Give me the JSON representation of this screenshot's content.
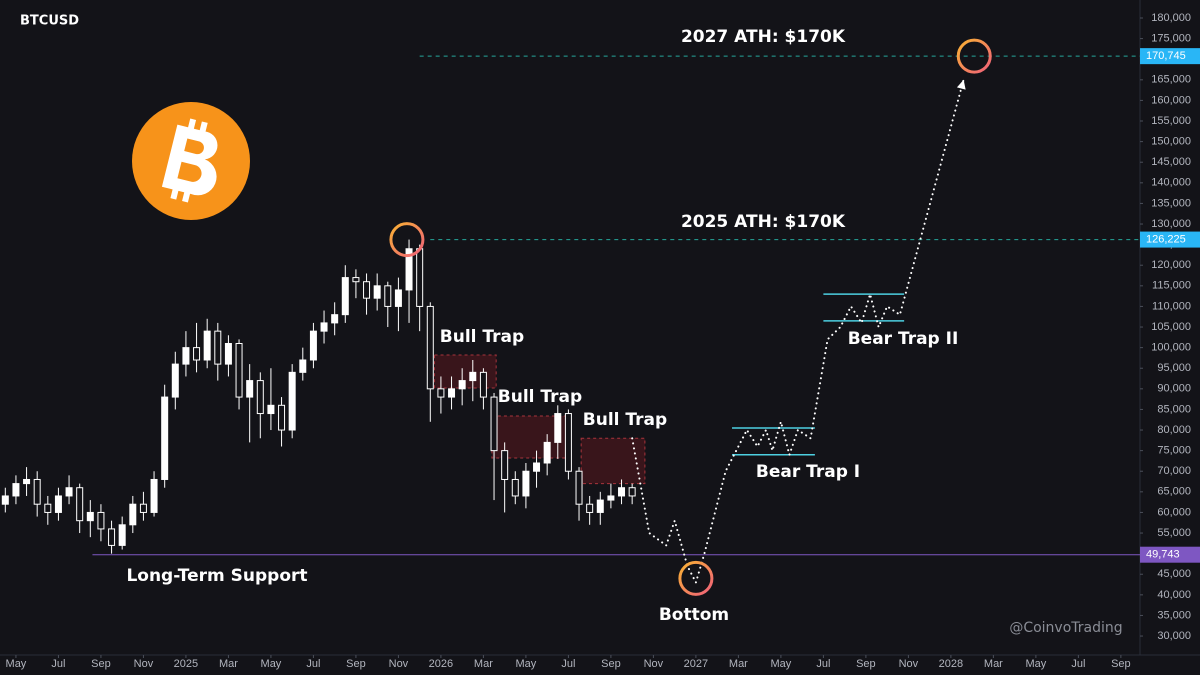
{
  "chart_data": {
    "type": "candlestick",
    "title": "BTCUSD",
    "up_color": "#ffffff",
    "down_color": "#ffffff",
    "x": [
      -0.5,
      0,
      0.5,
      1,
      1.5,
      2,
      2.5,
      3,
      3.5,
      4,
      4.5,
      5,
      5.5,
      6,
      6.5,
      7,
      7.5,
      8,
      8.5,
      9,
      9.5,
      10,
      10.5,
      11,
      11.5,
      12,
      12.5,
      13,
      13.5,
      14,
      14.5,
      15,
      15.5,
      16,
      16.5,
      17,
      17.5,
      18,
      18.5,
      19,
      19.5,
      20,
      20.5,
      21,
      21.5,
      22,
      22.5,
      23,
      23.5,
      24,
      24.5,
      25,
      25.5,
      26,
      26.5,
      27,
      27.5,
      28,
      28.5,
      29
    ],
    "open": [
      62000,
      64000,
      67000,
      68000,
      62000,
      60000,
      64000,
      66000,
      58000,
      60000,
      56000,
      52000,
      57000,
      62000,
      60000,
      68000,
      88000,
      96000,
      100000,
      97000,
      104000,
      96000,
      101000,
      88000,
      92000,
      84000,
      86000,
      80000,
      94000,
      97000,
      104000,
      106000,
      108000,
      117000,
      116000,
      112000,
      115000,
      110000,
      114000,
      124000,
      110000,
      90000,
      88000,
      90000,
      92000,
      94000,
      88000,
      75000,
      68000,
      64000,
      70000,
      72000,
      77000,
      84000,
      70000,
      62000,
      60000,
      63000,
      64000,
      66000
    ],
    "high": [
      66000,
      69000,
      71000,
      70000,
      64000,
      66000,
      69000,
      67000,
      63000,
      62000,
      58000,
      59000,
      64000,
      65000,
      70000,
      91000,
      99000,
      104000,
      106000,
      107000,
      106000,
      103000,
      102000,
      96000,
      94000,
      95000,
      88000,
      96000,
      100000,
      106000,
      109000,
      111000,
      120000,
      119000,
      118000,
      118000,
      116000,
      117000,
      126225,
      125000,
      111000,
      93000,
      93000,
      95000,
      97000,
      95000,
      89000,
      77000,
      70000,
      72000,
      75000,
      79000,
      86000,
      85000,
      71000,
      64000,
      65000,
      67000,
      68000,
      67000
    ],
    "low": [
      60000,
      62000,
      64000,
      59000,
      57000,
      58000,
      62000,
      55000,
      54000,
      53000,
      50000,
      51000,
      55000,
      58000,
      59000,
      66000,
      85000,
      93000,
      94000,
      95000,
      92000,
      93000,
      85000,
      77000,
      78000,
      80000,
      76000,
      78000,
      92000,
      95000,
      101000,
      103000,
      106000,
      112000,
      108000,
      109000,
      105000,
      104000,
      106000,
      104000,
      82000,
      84000,
      85000,
      86000,
      87000,
      85000,
      63000,
      60000,
      62000,
      61000,
      66000,
      69000,
      73000,
      68000,
      58000,
      57000,
      57000,
      61000,
      62000,
      62000
    ],
    "close": [
      64000,
      67000,
      68000,
      62000,
      60000,
      64000,
      66000,
      58000,
      60000,
      56000,
      52000,
      57000,
      62000,
      60000,
      68000,
      88000,
      96000,
      100000,
      97000,
      104000,
      96000,
      101000,
      88000,
      92000,
      84000,
      86000,
      80000,
      94000,
      97000,
      104000,
      106000,
      108000,
      117000,
      116000,
      112000,
      115000,
      110000,
      114000,
      124000,
      110000,
      90000,
      88000,
      90000,
      92000,
      94000,
      88000,
      75000,
      68000,
      64000,
      70000,
      72000,
      77000,
      84000,
      70000,
      62000,
      60000,
      63000,
      64000,
      66000,
      64000
    ],
    "xlim": [
      -0.75,
      52.9
    ],
    "ylim": [
      25400,
      184370
    ],
    "xticks": [
      {
        "value": 0,
        "label": "May"
      },
      {
        "value": 2,
        "label": "Jul"
      },
      {
        "value": 4,
        "label": "Sep"
      },
      {
        "value": 6,
        "label": "Nov"
      },
      {
        "value": 8,
        "label": "2025"
      },
      {
        "value": 10,
        "label": "Mar"
      },
      {
        "value": 12,
        "label": "May"
      },
      {
        "value": 14,
        "label": "Jul"
      },
      {
        "value": 16,
        "label": "Sep"
      },
      {
        "value": 18,
        "label": "Nov"
      },
      {
        "value": 20,
        "label": "2026"
      },
      {
        "value": 22,
        "label": "Mar"
      },
      {
        "value": 24,
        "label": "May"
      },
      {
        "value": 26,
        "label": "Jul"
      },
      {
        "value": 28,
        "label": "Sep"
      },
      {
        "value": 30,
        "label": "Nov"
      },
      {
        "value": 32,
        "label": "2027"
      },
      {
        "value": 34,
        "label": "Mar"
      },
      {
        "value": 36,
        "label": "May"
      },
      {
        "value": 38,
        "label": "Jul"
      },
      {
        "value": 40,
        "label": "Sep"
      },
      {
        "value": 42,
        "label": "Nov"
      },
      {
        "value": 44,
        "label": "2028"
      },
      {
        "value": 46,
        "label": "Mar"
      },
      {
        "value": 48,
        "label": "May"
      },
      {
        "value": 50,
        "label": "Jul"
      },
      {
        "value": 52,
        "label": "Sep"
      }
    ],
    "yticks": [
      {
        "value": 30000,
        "label": "30,000"
      },
      {
        "value": 35000,
        "label": "35,000"
      },
      {
        "value": 40000,
        "label": "40,000"
      },
      {
        "value": 45000,
        "label": "45,000"
      },
      {
        "value": 50000,
        "label": "50,000"
      },
      {
        "value": 55000,
        "label": "55,000"
      },
      {
        "value": 60000,
        "label": "60,000"
      },
      {
        "value": 65000,
        "label": "65,000"
      },
      {
        "value": 70000,
        "label": "70,000"
      },
      {
        "value": 75000,
        "label": "75,000"
      },
      {
        "value": 80000,
        "label": "80,000"
      },
      {
        "value": 85000,
        "label": "85,000"
      },
      {
        "value": 90000,
        "label": "90,000"
      },
      {
        "value": 95000,
        "label": "95,000"
      },
      {
        "value": 100000,
        "label": "100,000"
      },
      {
        "value": 105000,
        "label": "105,000"
      },
      {
        "value": 110000,
        "label": "110,000"
      },
      {
        "value": 115000,
        "label": "115,000"
      },
      {
        "value": 120000,
        "label": "120,000"
      },
      {
        "value": 125000,
        "label": "125,000"
      },
      {
        "value": 130000,
        "label": "130,000"
      },
      {
        "value": 135000,
        "label": "135,000"
      },
      {
        "value": 140000,
        "label": "140,000"
      },
      {
        "value": 145000,
        "label": "145,000"
      },
      {
        "value": 150000,
        "label": "150,000"
      },
      {
        "value": 155000,
        "label": "155,000"
      },
      {
        "value": 160000,
        "label": "160,000"
      },
      {
        "value": 165000,
        "label": "165,000"
      },
      {
        "value": 170000,
        "label": "170,000"
      },
      {
        "value": 175000,
        "label": "175,000"
      },
      {
        "value": 180000,
        "label": "180,000"
      }
    ],
    "levels": [
      {
        "value": 170745,
        "label": "170,745",
        "x0": 19.0,
        "color": "#26a69a",
        "tag_color": "#29b6f6",
        "dashed": true
      },
      {
        "value": 126225,
        "label": "126,225",
        "x0": 19.5,
        "color": "#26a69a",
        "tag_color": "#29b6f6",
        "dashed": true
      },
      {
        "value": 49743,
        "label": "49,743",
        "x0": 3.6,
        "color": "#7e57c2",
        "tag_color": "#7e57c2",
        "dashed": false
      }
    ],
    "boxes": [
      {
        "x": [
          19.7,
          22.6
        ],
        "y": [
          90200,
          98200
        ]
      },
      {
        "x": [
          22.4,
          26.1
        ],
        "y": [
          73200,
          83400
        ]
      },
      {
        "x": [
          26.6,
          29.6
        ],
        "y": [
          67000,
          78000
        ]
      }
    ],
    "ranges": [
      {
        "x": [
          33.7,
          37.6
        ],
        "y": [
          74000,
          80500
        ]
      },
      {
        "x": [
          38.0,
          41.8
        ],
        "y": [
          106500,
          113000
        ]
      }
    ],
    "projection": {
      "x": [
        29.0,
        29.8,
        30.6,
        31.0,
        31.6,
        32.0,
        32.4,
        33.4,
        34.4,
        34.9,
        35.3,
        35.6,
        36.0,
        36.4,
        36.8,
        37.4,
        38.2,
        38.8,
        39.3,
        39.8,
        40.2,
        40.6,
        41.0,
        41.6,
        44.6
      ],
      "y": [
        78000,
        55000,
        52000,
        58000,
        47000,
        43000,
        50000,
        70000,
        80000,
        76000,
        80000,
        75000,
        82000,
        74000,
        80000,
        78000,
        102000,
        105000,
        110000,
        106000,
        113000,
        105000,
        110000,
        108000,
        165000
      ]
    },
    "circles": [
      {
        "x": 18.4,
        "y": 126225
      },
      {
        "x": 32.0,
        "y": 44000
      },
      {
        "x": 45.1,
        "y": 170745
      }
    ],
    "annotations": [
      "2027 ATH: $170K",
      "2025 ATH: $170K",
      "Bull Trap",
      "Bull Trap",
      "Bull Trap",
      "Bear Trap I",
      "Bear Trap II",
      "Long-Term Support",
      "Bottom"
    ],
    "watermark": "@CoinvoTrading"
  }
}
